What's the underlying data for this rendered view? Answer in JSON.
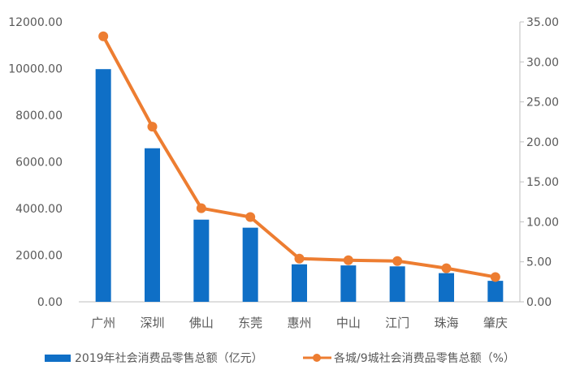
{
  "chart_data": {
    "type": "bar",
    "categories": [
      "广州",
      "深圳",
      "佛山",
      "东莞",
      "惠州",
      "中山",
      "江门",
      "珠海",
      "肇庆"
    ],
    "series": [
      {
        "name": "2019年社会消费品零售总额（亿元）",
        "type": "bar",
        "axis": "left",
        "color": "#0f6fc6",
        "values": [
          9975.6,
          6582.9,
          3523.0,
          3177.6,
          1608.0,
          1560.0,
          1520.0,
          1230.0,
          900.0
        ]
      },
      {
        "name": "各城/9城社会消费品零售总额（%）",
        "type": "line",
        "axis": "right",
        "color": "#ed7d31",
        "values": [
          33.2,
          21.9,
          11.7,
          10.6,
          5.4,
          5.2,
          5.1,
          4.2,
          3.1
        ]
      }
    ],
    "y_left": {
      "min": 0,
      "max": 12000,
      "ticks": [
        "0.00",
        "2000.00",
        "4000.00",
        "6000.00",
        "8000.00",
        "10000.00",
        "12000.00"
      ]
    },
    "y_right": {
      "min": 0,
      "max": 35,
      "ticks": [
        "0.00",
        "5.00",
        "10.00",
        "15.00",
        "20.00",
        "25.00",
        "30.00",
        "35.00"
      ]
    },
    "grid": false,
    "legend": "bottom"
  }
}
